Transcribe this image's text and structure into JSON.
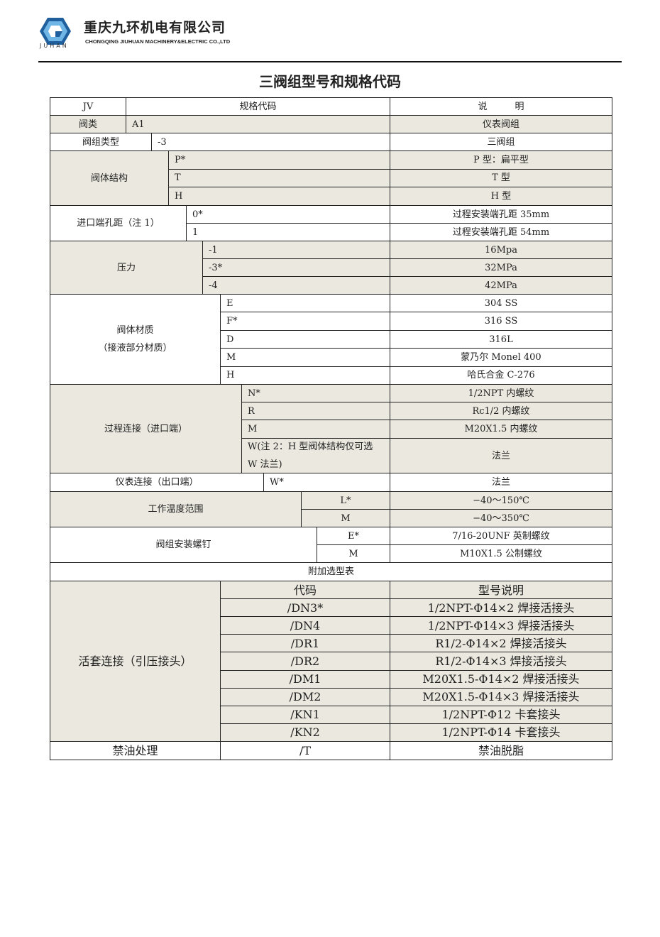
{
  "header": {
    "company_name": "重庆九环机电有限公司",
    "company_name_en": "CHONGQING JIUHUAN MACHINERY&ELECTRIC CO.,LTD",
    "logo_text": "JUHAN",
    "logo_color": "#1f5f9e"
  },
  "title": "三阀组型号和规格代码",
  "table": {
    "head": {
      "code": "JV",
      "spec": "规格代码",
      "desc": "说　　　明"
    },
    "valve_class": {
      "label": "阀类",
      "code": "A1",
      "desc": "仪表阀组"
    },
    "group_type": {
      "label": "阀组类型",
      "code": "-3",
      "desc": "三阀组"
    },
    "body_structure": {
      "label": "阀体结构",
      "options": [
        {
          "code": "P*",
          "desc": "P 型：扁平型"
        },
        {
          "code": "T",
          "desc": "T 型"
        },
        {
          "code": "H",
          "desc": "H 型"
        }
      ]
    },
    "inlet_spacing": {
      "label": "进口端孔距（注 1）",
      "options": [
        {
          "code": "0*",
          "desc": "过程安装端孔距 35mm"
        },
        {
          "code": "1",
          "desc": "过程安装端孔距 54mm"
        }
      ]
    },
    "pressure": {
      "label": "压力",
      "options": [
        {
          "code": "-1",
          "desc": "16Mpa"
        },
        {
          "code": "-3*",
          "desc": "32MPa"
        },
        {
          "code": "-4",
          "desc": "42MPa"
        }
      ]
    },
    "body_material": {
      "label": "阀体材质",
      "label2": "（接液部分材质）",
      "options": [
        {
          "code": "E",
          "desc": "304 SS"
        },
        {
          "code": "F*",
          "desc": "316 SS"
        },
        {
          "code": "D",
          "desc": "316L"
        },
        {
          "code": "M",
          "desc": "蒙乃尔 Monel 400"
        },
        {
          "code": "H",
          "desc": "哈氏合金 C-276"
        }
      ]
    },
    "process_connection": {
      "label": "过程连接（进口端）",
      "options": [
        {
          "code": "N*",
          "desc": "1/2NPT 内螺纹"
        },
        {
          "code": "R",
          "desc": "Rc1/2 内螺纹"
        },
        {
          "code": "M",
          "desc": "M20X1.5 内螺纹"
        },
        {
          "code": "W(注 2：H 型阀体结构仅可选 W 法兰)",
          "desc": "法兰"
        }
      ]
    },
    "instrument_connection": {
      "label": "仪表连接（出口端）",
      "code": "W*",
      "desc": "法兰"
    },
    "temperature": {
      "label": "工作温度范围",
      "options": [
        {
          "code": "L*",
          "desc": "−40～150℃"
        },
        {
          "code": "M",
          "desc": "−40～350℃"
        }
      ]
    },
    "mounting_screw": {
      "label": "阀组安装螺钉",
      "options": [
        {
          "code": "E*",
          "desc": "7/16-20UNF 英制螺纹"
        },
        {
          "code": "M",
          "desc": "M10X1.5 公制螺纹"
        }
      ]
    },
    "additional": {
      "title": "附加选型表",
      "code_header": "代码",
      "desc_header": "型号说明",
      "fitting": {
        "label": "活套连接（引压接头）",
        "options": [
          {
            "code": "/DN3*",
            "desc": "1/2NPT-Φ14×2 焊接活接头"
          },
          {
            "code": "/DN4",
            "desc": "1/2NPT-Φ14×3 焊接活接头"
          },
          {
            "code": "/DR1",
            "desc": "R1/2-Φ14×2 焊接活接头"
          },
          {
            "code": "/DR2",
            "desc": "R1/2-Φ14×3 焊接活接头"
          },
          {
            "code": "/DM1",
            "desc": "M20X1.5-Φ14×2 焊接活接头"
          },
          {
            "code": "/DM2",
            "desc": "M20X1.5-Φ14×3 焊接活接头"
          },
          {
            "code": "/KN1",
            "desc": "1/2NPT-Φ12 卡套接头"
          },
          {
            "code": "/KN2",
            "desc": "1/2NPT-Φ14 卡套接头"
          }
        ]
      },
      "oil_free": {
        "label": "禁油处理",
        "code": "/T",
        "desc": "禁油脱脂"
      }
    }
  }
}
